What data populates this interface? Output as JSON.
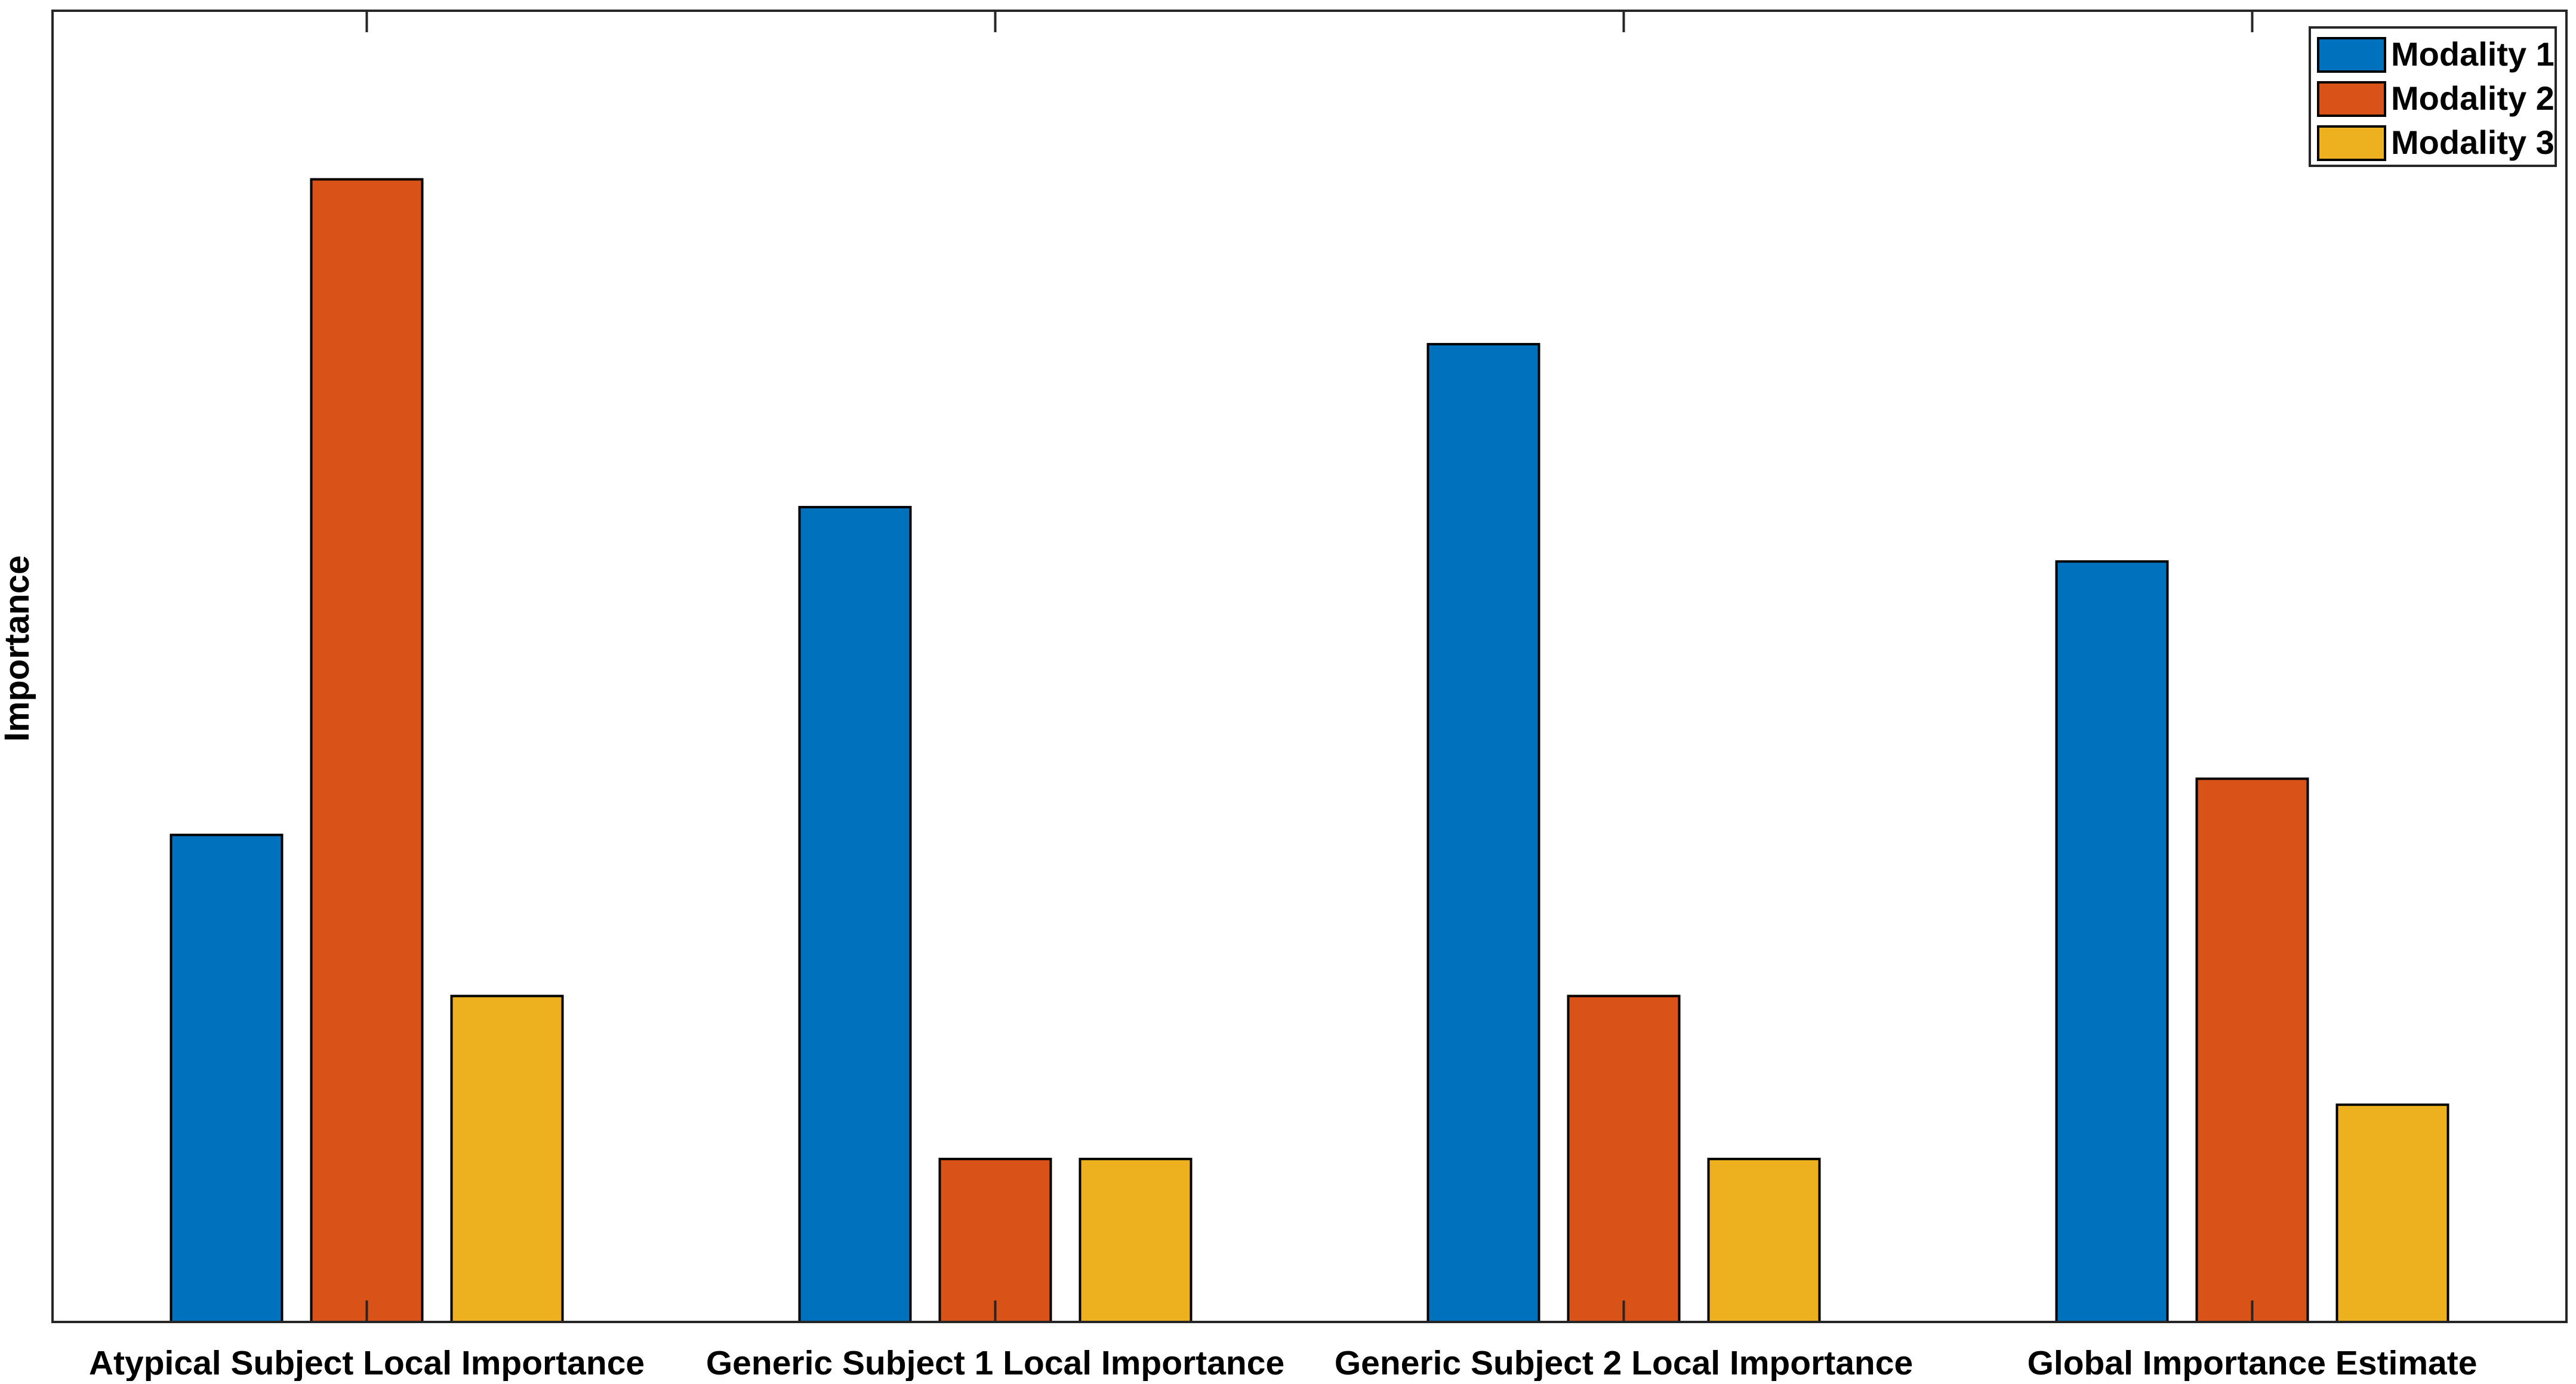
{
  "chart_data": {
    "type": "bar",
    "title": "",
    "xlabel": "",
    "ylabel": "Importance",
    "ylim": [
      0,
      7
    ],
    "grid": false,
    "legend_position": "top-right",
    "categories": [
      "Atypical Subject Local Importance",
      "Generic Subject 1 Local Importance",
      "Generic Subject 2 Local Importance",
      "Global Importance Estimate"
    ],
    "series": [
      {
        "name": "Modality 1",
        "color": "#0072BD",
        "values": [
          2.6,
          4.35,
          5.22,
          4.06
        ]
      },
      {
        "name": "Modality 2",
        "color": "#D95319",
        "values": [
          6.1,
          0.87,
          1.74,
          2.9
        ]
      },
      {
        "name": "Modality 3",
        "color": "#EDB120",
        "values": [
          1.74,
          0.87,
          0.87,
          1.16
        ]
      }
    ]
  }
}
